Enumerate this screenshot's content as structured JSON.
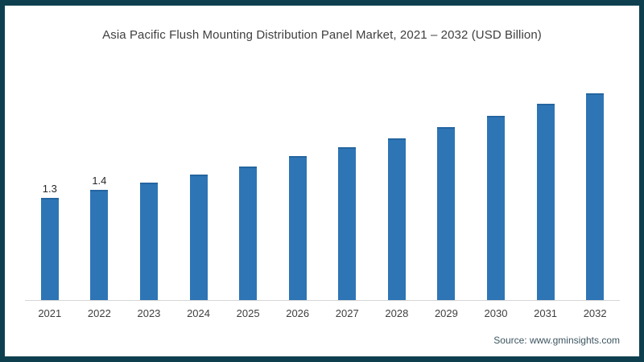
{
  "title": "Asia Pacific Flush Mounting Distribution Panel Market, 2021 – 2032 (USD Billion)",
  "source": "Source: www.gminsights.com",
  "colors": {
    "frame_border": "#0e3f4f",
    "bar": "#2e75b5",
    "bar_top_edge": "#2465a0",
    "axis_line": "#d6d6d6",
    "title_text": "#3f3f3f",
    "source_text": "#3d5560"
  },
  "chart_data": {
    "type": "bar",
    "title": "Asia Pacific Flush Mounting Distribution Panel Market, 2021 – 2032 (USD Billion)",
    "categories": [
      "2021",
      "2022",
      "2023",
      "2024",
      "2025",
      "2026",
      "2027",
      "2028",
      "2029",
      "2030",
      "2031",
      "2032"
    ],
    "values": [
      1.3,
      1.4,
      1.5,
      1.6,
      1.7,
      1.83,
      1.95,
      2.06,
      2.2,
      2.35,
      2.5,
      2.63
    ],
    "data_labels": [
      "1.3",
      "1.4",
      "",
      "",
      "",
      "",
      "",
      "",
      "",
      "",
      "",
      ""
    ],
    "xlabel": "",
    "ylabel": "",
    "ylim": [
      0,
      2.92
    ],
    "grid": false,
    "legend": false,
    "y_axis_shown": false
  }
}
